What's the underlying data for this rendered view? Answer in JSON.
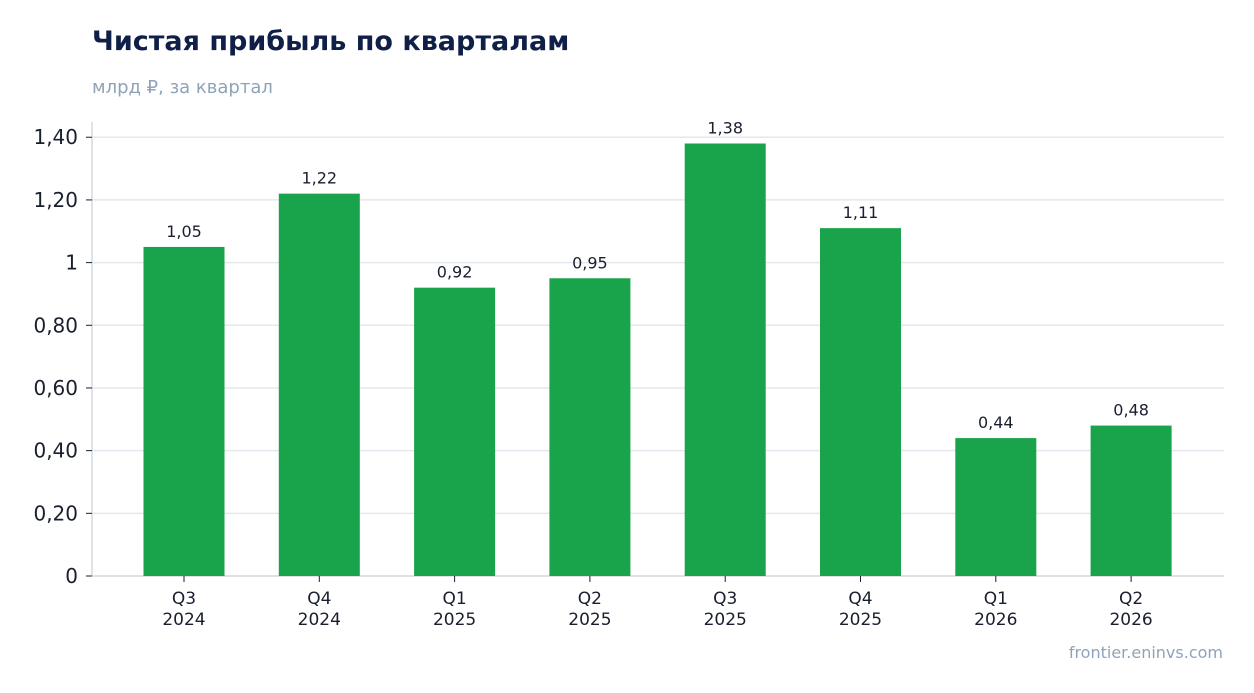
{
  "title": "Чистая прибыль по кварталам",
  "subtitle": "млрд ₽, за квартал",
  "source": "frontier.eninvs.com",
  "colors": {
    "bar": "#19a34a",
    "grid": "#e3e8ee",
    "axis": "#c9d0d8",
    "tick_text": "#1a1f2e",
    "label_text": "#1a1f2e"
  },
  "chart_data": {
    "type": "bar",
    "categories": [
      [
        "Q3",
        "2024"
      ],
      [
        "Q4",
        "2024"
      ],
      [
        "Q1",
        "2025"
      ],
      [
        "Q2",
        "2025"
      ],
      [
        "Q3",
        "2025"
      ],
      [
        "Q4",
        "2025"
      ],
      [
        "Q1",
        "2026"
      ],
      [
        "Q2",
        "2026"
      ]
    ],
    "values": [
      1.05,
      1.22,
      0.92,
      0.95,
      1.38,
      1.11,
      0.44,
      0.48
    ],
    "value_labels": [
      "1,05",
      "1,22",
      "0,92",
      "0,95",
      "1,38",
      "1,11",
      "0,44",
      "0,48"
    ],
    "ylim": [
      0,
      1.45
    ],
    "yticks": [
      0,
      0.2,
      0.4,
      0.6,
      0.8,
      1.0,
      1.2,
      1.4
    ],
    "ytick_labels": [
      "0",
      "0,20",
      "0,40",
      "0,60",
      "0,80",
      "1",
      "1,20",
      "1,40"
    ],
    "grid": true,
    "legend": false
  }
}
